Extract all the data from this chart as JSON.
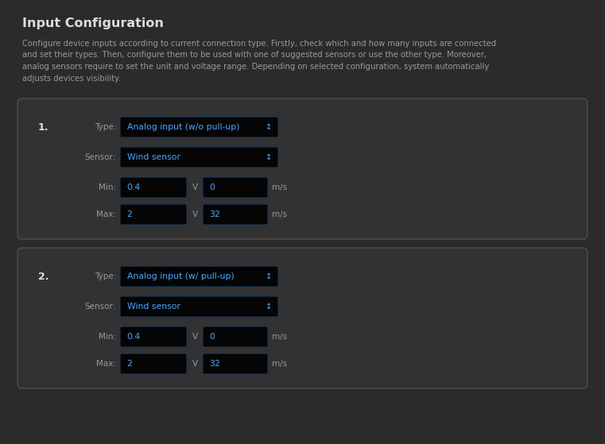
{
  "bg_color": "#2b2b2b",
  "card_bg": "#323232",
  "card_border": "#555555",
  "input_bg": "#050505",
  "input_border": "#1a3a5c",
  "blue_text": "#4da6ff",
  "label_color": "#999999",
  "white_text": "#dddddd",
  "title": "Input Configuration",
  "description_lines": [
    "Configure device inputs according to current connection type. Firstly, check which and how many inputs are connected",
    "and set their types. Then, configure them to be used with one of suggested sensors or use the other type. Moreover,",
    "analog sensors require to set the unit and voltage range. Depending on selected configuration, system automatically",
    "adjusts devices visibility."
  ],
  "sections": [
    {
      "number": "1.",
      "type_value": "Analog input (w/o pull-up)",
      "sensor_value": "Wind sensor",
      "min_v": "0.4",
      "min_val2": "0",
      "max_v": "2",
      "max_val2": "32"
    },
    {
      "number": "2.",
      "type_value": "Analog input (w/ pull-up)",
      "sensor_value": "Wind sensor",
      "min_v": "0.4",
      "min_val2": "0",
      "max_v": "2",
      "max_val2": "32"
    }
  ],
  "type_label": "Type:",
  "sensor_label": "Sensor:",
  "min_label": "Min:",
  "max_label": "Max:",
  "unit_v": "V",
  "unit_ms": "m/s",
  "arrow": "↕"
}
